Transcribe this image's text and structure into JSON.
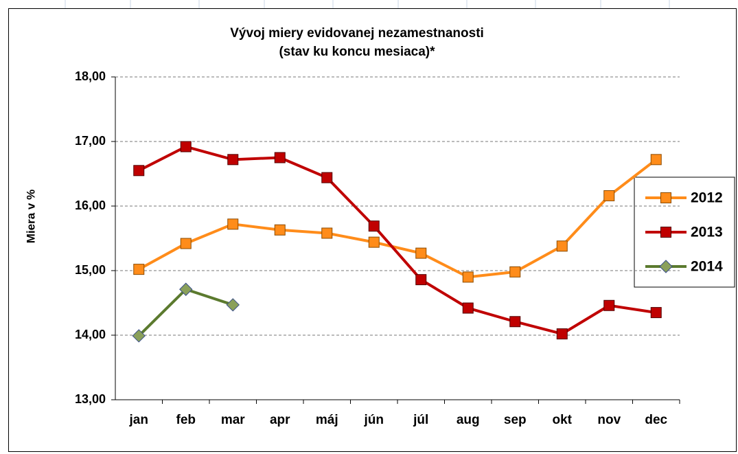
{
  "chart_data": {
    "type": "line",
    "title": "Vývoj miery evidovanej nezamestnanosti",
    "subtitle": "(stav ku koncu mesiaca)*",
    "y_label": "Miera v %",
    "categories": [
      "jan",
      "feb",
      "mar",
      "apr",
      "máj",
      "jún",
      "júl",
      "aug",
      "sep",
      "okt",
      "nov",
      "dec"
    ],
    "series": [
      {
        "name": "2012",
        "color": "#ff8c1a",
        "marker": "square",
        "marker_edge": "#8a4a00",
        "values": [
          15.02,
          15.42,
          15.72,
          15.63,
          15.58,
          15.44,
          15.27,
          14.9,
          14.98,
          15.38,
          16.16,
          16.72
        ]
      },
      {
        "name": "2013",
        "color": "#c00000",
        "marker": "square",
        "marker_edge": "#500000",
        "values": [
          16.55,
          16.92,
          16.72,
          16.75,
          16.44,
          15.69,
          14.86,
          14.42,
          14.21,
          14.02,
          14.46,
          14.35
        ]
      },
      {
        "name": "2014",
        "color": "#5b7a2e",
        "marker": "diamond",
        "marker_fill": "#8aa05a",
        "marker_edge": "#3a4f8a",
        "values": [
          13.99,
          14.71,
          14.47,
          null,
          null,
          null,
          null,
          null,
          null,
          null,
          null,
          null
        ]
      }
    ],
    "ylim": [
      13,
      18
    ],
    "yticks": [
      {
        "value": 13,
        "label": "13,00"
      },
      {
        "value": 14,
        "label": "14,00"
      },
      {
        "value": 15,
        "label": "15,00"
      },
      {
        "value": 16,
        "label": "16,00"
      },
      {
        "value": 17,
        "label": "17,00"
      },
      {
        "value": 18,
        "label": "18,00"
      }
    ],
    "grid": true,
    "legend": "right"
  }
}
